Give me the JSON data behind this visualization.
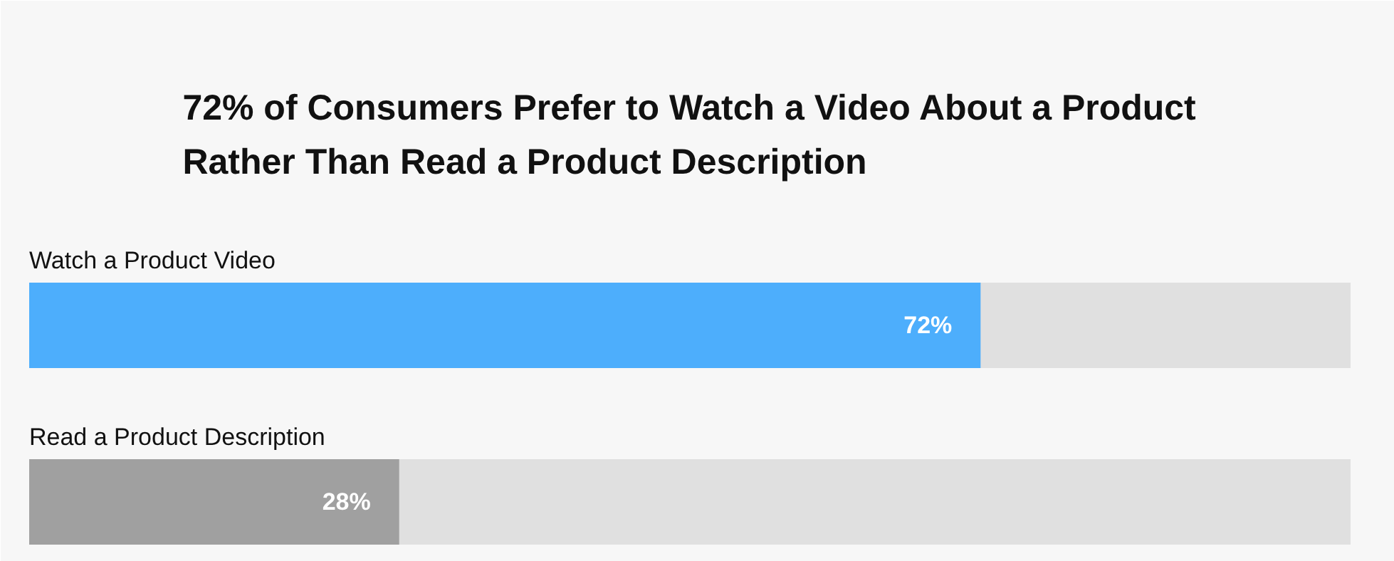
{
  "chart_data": {
    "type": "bar",
    "orientation": "horizontal",
    "title": "72% of Consumers Prefer to Watch a Video About a Product Rather Than Read a Product Description",
    "categories": [
      "Watch a Product Video",
      "Read a Product Description"
    ],
    "values": [
      72,
      28
    ],
    "colors": [
      "#4daefc",
      "#a0a0a0"
    ],
    "value_labels": [
      "72%",
      "28%"
    ],
    "xlim": [
      0,
      100
    ],
    "grid": false
  }
}
